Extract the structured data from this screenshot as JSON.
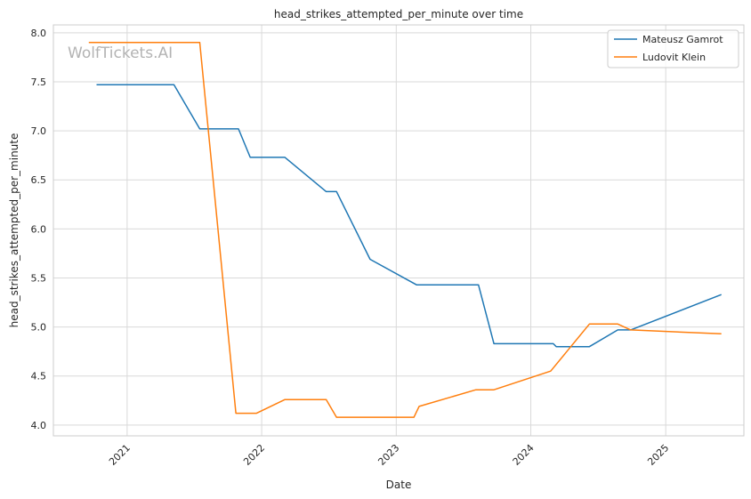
{
  "chart_data": {
    "type": "line",
    "title": "head_strikes_attempted_per_minute over time",
    "xlabel": "Date",
    "ylabel": "head_strikes_attempted_per_minute",
    "watermark": "WolfTickets.AI",
    "xlim": [
      "2020-06-15",
      "2025-08-01"
    ],
    "ylim": [
      3.89,
      8.08
    ],
    "x_ticks": [
      {
        "date": "2021-01-01",
        "label": "2021"
      },
      {
        "date": "2022-01-01",
        "label": "2022"
      },
      {
        "date": "2023-01-01",
        "label": "2023"
      },
      {
        "date": "2024-01-01",
        "label": "2024"
      },
      {
        "date": "2025-01-01",
        "label": "2025"
      }
    ],
    "y_ticks": [
      4.0,
      4.5,
      5.0,
      5.5,
      6.0,
      6.5,
      7.0,
      7.5,
      8.0
    ],
    "grid": true,
    "legend_position": "top-right",
    "series": [
      {
        "name": "Mateusz Gamrot",
        "color": "#1f77b4",
        "points": [
          [
            "2020-10-10",
            7.47
          ],
          [
            "2021-05-08",
            7.47
          ],
          [
            "2021-07-17",
            7.02
          ],
          [
            "2021-10-30",
            7.02
          ],
          [
            "2021-12-01",
            6.73
          ],
          [
            "2022-03-05",
            6.73
          ],
          [
            "2022-06-25",
            6.38
          ],
          [
            "2022-07-23",
            6.38
          ],
          [
            "2022-10-22",
            5.69
          ],
          [
            "2023-02-25",
            5.43
          ],
          [
            "2023-08-12",
            5.43
          ],
          [
            "2023-09-23",
            4.83
          ],
          [
            "2024-03-02",
            4.83
          ],
          [
            "2024-03-10",
            4.8
          ],
          [
            "2024-06-08",
            4.8
          ],
          [
            "2024-08-24",
            4.97
          ],
          [
            "2024-09-28",
            4.97
          ],
          [
            "2025-06-01",
            5.33
          ]
        ]
      },
      {
        "name": "Ludovit Klein",
        "color": "#ff7f0e",
        "points": [
          [
            "2020-09-19",
            7.9
          ],
          [
            "2021-07-17",
            7.9
          ],
          [
            "2021-10-23",
            4.12
          ],
          [
            "2021-12-18",
            4.12
          ],
          [
            "2022-03-05",
            4.26
          ],
          [
            "2022-06-25",
            4.26
          ],
          [
            "2022-07-23",
            4.08
          ],
          [
            "2023-02-18",
            4.08
          ],
          [
            "2023-03-04",
            4.19
          ],
          [
            "2023-08-05",
            4.36
          ],
          [
            "2023-09-23",
            4.36
          ],
          [
            "2024-02-24",
            4.55
          ],
          [
            "2024-06-08",
            5.03
          ],
          [
            "2024-08-24",
            5.03
          ],
          [
            "2024-09-28",
            4.97
          ],
          [
            "2025-06-01",
            4.93
          ]
        ]
      }
    ]
  }
}
